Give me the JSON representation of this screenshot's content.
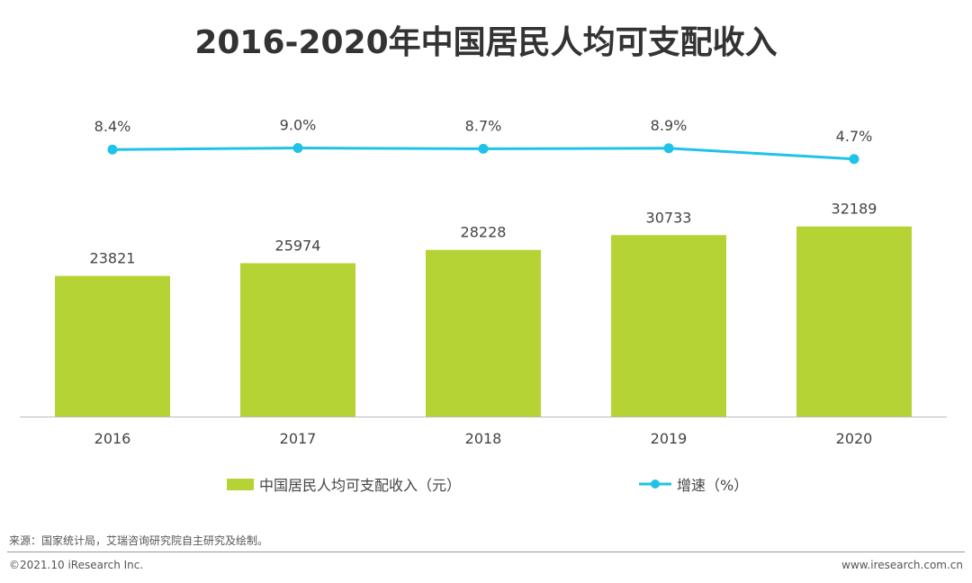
{
  "title": "2016-2020年中国居民人均可支配收入",
  "colors": {
    "bar": "#b5d334",
    "line": "#1fc3e8",
    "axis": "#bbbbbb",
    "text": "#444444"
  },
  "legend": {
    "bar_label": "中国居民人均可支配收入（元）",
    "line_label": "增速（%）"
  },
  "footer": {
    "source": "来源：国家统计局，艾瑞咨询研究院自主研究及绘制。",
    "copyright": "©2021.10 iResearch Inc.",
    "website": "www.iresearch.com.cn"
  },
  "chart_data": {
    "type": "bar",
    "categories": [
      "2016",
      "2017",
      "2018",
      "2019",
      "2020"
    ],
    "series": [
      {
        "name": "中国居民人均可支配收入（元）",
        "type": "bar",
        "values": [
          23821,
          25974,
          28228,
          30733,
          32189
        ],
        "labels": [
          "23821",
          "25974",
          "28228",
          "30733",
          "32189"
        ]
      },
      {
        "name": "增速（%）",
        "type": "line",
        "values": [
          8.4,
          9.0,
          8.7,
          8.9,
          4.7
        ],
        "labels": [
          "8.4%",
          "9.0%",
          "8.7%",
          "8.9%",
          "4.7%"
        ]
      }
    ],
    "grid": false,
    "legend_position": "bottom"
  }
}
